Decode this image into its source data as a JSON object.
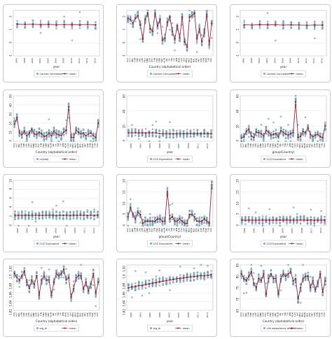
{
  "colors": {
    "scatter_fill": "#8fb6c7",
    "scatter_edge": "#4d7f94",
    "mean_line": "#8a2a3c",
    "frame": "#c8c8c8"
  },
  "legend_mean": "mean",
  "chart_data": [
    {
      "type": "scatter",
      "xlabel": "year",
      "ylabel": "",
      "legend": "Control Corruption",
      "categories": [
        "1996",
        "1998",
        "2000",
        "2002",
        "2004",
        "2006",
        "2008",
        "2010",
        "2012",
        "2014",
        "2016"
      ],
      "ylim": [
        -1.0,
        2.5
      ],
      "yticks": [
        -1,
        0,
        1,
        2
      ],
      "mean": [
        1.45,
        1.42,
        1.44,
        1.41,
        1.43,
        1.4,
        1.42,
        1.41,
        1.4,
        1.42,
        1.39
      ]
    },
    {
      "type": "scatter",
      "xlabel": "Country (alphabetical order)",
      "ylabel": "",
      "legend": "Control Corruption",
      "categories": [
        "AUS",
        "AUT",
        "BEL",
        "CAN",
        "CHE",
        "CHL",
        "CZE",
        "DEU",
        "DNK",
        "ESP",
        "EST",
        "FIN",
        "FRA",
        "GBR",
        "GRC",
        "HUN",
        "IRL",
        "ISL",
        "ISR",
        "ITA",
        "JPN",
        "KOR",
        "LUX",
        "LVA",
        "MEX",
        "NLD",
        "NOR",
        "NZL",
        "POL",
        "PRT",
        "SVK",
        "SVN",
        "SWE",
        "TUR",
        "USA"
      ],
      "ylim": [
        -1.0,
        2.5
      ],
      "yticks": [
        -1,
        0,
        1,
        2
      ],
      "mean": [
        1.9,
        1.8,
        1.5,
        1.9,
        2.1,
        1.4,
        0.3,
        1.8,
        2.3,
        1.1,
        0.9,
        2.3,
        1.3,
        1.8,
        0.2,
        0.4,
        1.6,
        2.0,
        0.9,
        0.3,
        1.3,
        0.4,
        2.0,
        0.1,
        -0.3,
        2.0,
        2.1,
        2.3,
        0.3,
        1.1,
        0.1,
        0.8,
        2.2,
        -0.1,
        1.5
      ]
    },
    {
      "type": "scatter",
      "xlabel": "year",
      "ylabel": "",
      "legend": "Control Corruption",
      "categories": [
        "1996",
        "1998",
        "2000",
        "2002",
        "2004",
        "2006",
        "2008",
        "2010",
        "2012",
        "2014",
        "2016"
      ],
      "ylim": [
        -1.0,
        2.5
      ],
      "yticks": [
        -1,
        0,
        1,
        2
      ],
      "mean": [
        1.4,
        1.38,
        1.41,
        1.39,
        1.4,
        1.37,
        1.39,
        1.38,
        1.36,
        1.38,
        1.37
      ]
    },
    {
      "type": "scatter",
      "xlabel": "Country (alphabetical order)",
      "ylabel": "",
      "legend": "co2wpl",
      "categories": [
        "AUS",
        "AUT",
        "BEL",
        "CAN",
        "CHE",
        "CHL",
        "CZE",
        "DEU",
        "DNK",
        "ESP",
        "EST",
        "FIN",
        "FRA",
        "GBR",
        "GRC",
        "HUN",
        "IRL",
        "ISL",
        "ISR",
        "ITA",
        "JPN",
        "KOR",
        "LUX",
        "LVA",
        "MEX",
        "NLD",
        "NOR",
        "NZL",
        "POL",
        "PRT",
        "SVK",
        "SVN",
        "SWE",
        "TUR",
        "USA"
      ],
      "ylim": [
        0,
        50
      ],
      "yticks": [
        0,
        10,
        20,
        30,
        40,
        50
      ],
      "mean": [
        19,
        26,
        9,
        7,
        11,
        6,
        9,
        13,
        8,
        7,
        10,
        8,
        5,
        6,
        9,
        6,
        11,
        8,
        7,
        6,
        10,
        12,
        38,
        4,
        4,
        12,
        10,
        8,
        9,
        6,
        8,
        9,
        6,
        4,
        20
      ]
    },
    {
      "type": "scatter",
      "xlabel": "year",
      "ylabel": "",
      "legend": "CO2 Equivalent",
      "categories": [
        "1990",
        "1993",
        "1996",
        "1999",
        "2002",
        "2005",
        "2008",
        "2011",
        "2014"
      ],
      "ylim": [
        0,
        60
      ],
      "yticks": [
        0,
        20,
        40,
        60
      ],
      "mean": [
        11,
        11,
        11,
        11,
        11,
        11,
        11,
        11,
        11,
        10,
        10,
        10,
        10,
        10,
        10,
        10,
        10,
        10,
        10,
        10,
        10,
        10,
        10,
        10,
        9.5
      ]
    },
    {
      "type": "scatter",
      "xlabel": "group(Country)",
      "ylabel": "",
      "legend": "CO2 Equivalent",
      "categories": [
        "AUS",
        "AUT",
        "BEL",
        "CAN",
        "CHE",
        "CHL",
        "CZE",
        "DEU",
        "DNK",
        "ESP",
        "EST",
        "FIN",
        "FRA",
        "GBR",
        "GRC",
        "HUN",
        "IRL",
        "ISL",
        "ISR",
        "ITA",
        "JPN",
        "KOR",
        "LUX",
        "LVA",
        "MEX",
        "NLD",
        "NOR",
        "NZL",
        "POL",
        "PRT",
        "SVK",
        "SVN",
        "SWE",
        "TUR",
        "USA"
      ],
      "ylim": [
        0,
        60
      ],
      "yticks": [
        0,
        20,
        40,
        60
      ],
      "mean": [
        4,
        6,
        13,
        16,
        7,
        5,
        12,
        11,
        10,
        7,
        14,
        12,
        8,
        9,
        10,
        6,
        14,
        12,
        9,
        8,
        10,
        11,
        52,
        5,
        6,
        13,
        11,
        18,
        9,
        6,
        8,
        9,
        6,
        5,
        20
      ]
    },
    {
      "type": "scatter",
      "xlabel": "year",
      "ylabel": "",
      "legend": "CO2 Equivalent",
      "categories": [
        "1990",
        "1993",
        "1996",
        "1999",
        "2002",
        "2005",
        "2008",
        "2011",
        "2014"
      ],
      "ylim": [
        0,
        10
      ],
      "yticks": [
        0,
        2,
        4,
        6,
        8,
        10
      ],
      "mean": [
        2.3,
        2.3,
        2.3,
        2.3,
        2.3,
        2.3,
        2.3,
        2.3,
        2.3,
        2.3,
        2.3,
        2.3,
        2.3,
        2.3,
        2.3,
        2.3,
        2.3,
        2.3,
        2.3,
        2.3,
        2.3,
        2.3,
        2.3,
        2.3,
        2.3
      ]
    },
    {
      "type": "scatter",
      "xlabel": "group(Country)",
      "ylabel": "",
      "legend": "CO2 Equivalent",
      "categories": [
        "AUS",
        "AUT",
        "BEL",
        "CAN",
        "CHE",
        "CHL",
        "CZE",
        "DEU",
        "DNK",
        "ESP",
        "EST",
        "FIN",
        "FRA",
        "GBR",
        "GRC",
        "HUN",
        "IRL",
        "ISL",
        "ISR",
        "ITA",
        "JPN",
        "KOR",
        "LUX",
        "LVA",
        "MEX",
        "NLD",
        "NOR",
        "NZL",
        "POL",
        "PRT",
        "SVK",
        "SVN",
        "SWE",
        "TUR",
        "USA"
      ],
      "ylim": [
        0,
        20
      ],
      "yticks": [
        0,
        5,
        10,
        15,
        20
      ],
      "mean": [
        4,
        8,
        5,
        3,
        6,
        5,
        1,
        2,
        2,
        2,
        2,
        2,
        3,
        3,
        2,
        2,
        15,
        3,
        4,
        2,
        2,
        3,
        2,
        1,
        1,
        5,
        5,
        4,
        2,
        2,
        2,
        3,
        2,
        1,
        18
      ]
    },
    {
      "type": "scatter",
      "xlabel": "year",
      "ylabel": "",
      "legend": "CO2 Equivalent",
      "categories": [
        "1990",
        "1993",
        "1996",
        "1999",
        "2002",
        "2005",
        "2008",
        "2011",
        "2014"
      ],
      "ylim": [
        0,
        20
      ],
      "yticks": [
        0,
        5,
        10,
        15,
        20
      ],
      "mean": [
        2.5,
        2.5,
        2.5,
        2.5,
        2.5,
        2.5,
        2.5,
        2.5,
        2.5,
        2.5,
        2.5,
        2.5,
        2.5,
        2.5,
        2.5,
        2.5,
        2.5,
        2.5,
        2.5,
        2.5,
        2.5,
        2.5,
        2.5,
        2.5,
        2.5
      ]
    },
    {
      "type": "scatter",
      "xlabel": "Country (alphabetical order)",
      "ylabel": "",
      "legend": "log_le",
      "categories": [
        "AUS",
        "AUT",
        "BEL",
        "CAN",
        "CHE",
        "CHL",
        "CZE",
        "DEU",
        "DNK",
        "ESP",
        "EST",
        "FIN",
        "FRA",
        "GBR",
        "GRC",
        "HUN",
        "IRL",
        "ISL",
        "ISR",
        "ITA",
        "JPN",
        "KOR",
        "LUX",
        "LVA",
        "MEX",
        "NLD",
        "NOR",
        "NZL",
        "POL",
        "PRT",
        "SVK",
        "SVN",
        "SWE",
        "TUR",
        "USA"
      ],
      "ylim": [
        1.82,
        1.925
      ],
      "yticks": [
        1.82,
        1.84,
        1.86,
        1.88,
        1.9,
        1.92
      ],
      "mean": [
        1.905,
        1.895,
        1.89,
        1.9,
        1.91,
        1.885,
        1.87,
        1.89,
        1.88,
        1.9,
        1.855,
        1.89,
        1.9,
        1.89,
        1.89,
        1.855,
        1.885,
        1.905,
        1.9,
        1.905,
        1.915,
        1.89,
        1.895,
        1.85,
        1.87,
        1.895,
        1.9,
        1.9,
        1.87,
        1.885,
        1.865,
        1.88,
        1.905,
        1.86,
        1.885
      ]
    },
    {
      "type": "scatter",
      "xlabel": "year",
      "ylabel": "",
      "legend": "log_le",
      "categories": [
        "1990",
        "1993",
        "1996",
        "1999",
        "2002",
        "2005",
        "2008",
        "2011",
        "2014"
      ],
      "ylim": [
        1.82,
        1.925
      ],
      "yticks": [
        1.82,
        1.84,
        1.86,
        1.88,
        1.9,
        1.92
      ],
      "mean": [
        1.872,
        1.874,
        1.875,
        1.877,
        1.878,
        1.88,
        1.881,
        1.883,
        1.884,
        1.886,
        1.887,
        1.889,
        1.89,
        1.891,
        1.893,
        1.894,
        1.895,
        1.896,
        1.897,
        1.898,
        1.899,
        1.9,
        1.9,
        1.901,
        1.902
      ]
    },
    {
      "type": "scatter",
      "xlabel": "Country (alphabetical order)",
      "ylabel": "",
      "legend": "Life expectancy at birth",
      "categories": [
        "AUS",
        "AUT",
        "BEL",
        "CAN",
        "CHE",
        "CHL",
        "CZE",
        "DEU",
        "DNK",
        "ESP",
        "EST",
        "FIN",
        "FRA",
        "GBR",
        "GRC",
        "HUN",
        "IRL",
        "ISL",
        "ISR",
        "ITA",
        "JPN",
        "KOR",
        "LUX",
        "LVA",
        "MEX",
        "NLD",
        "NOR",
        "NZL",
        "POL",
        "PRT",
        "SVK",
        "SVN",
        "SWE",
        "TUR",
        "USA"
      ],
      "ylim": [
        65,
        85
      ],
      "yticks": [
        65,
        70,
        75,
        80,
        85
      ],
      "mean": [
        81,
        79,
        78,
        80,
        82,
        77,
        75,
        79,
        78,
        81,
        72,
        79,
        81,
        79,
        79,
        72,
        79,
        81,
        80,
        81,
        82,
        78,
        79,
        70,
        75,
        79,
        80,
        80,
        75,
        78,
        74,
        77,
        81,
        73,
        78
      ]
    }
  ]
}
